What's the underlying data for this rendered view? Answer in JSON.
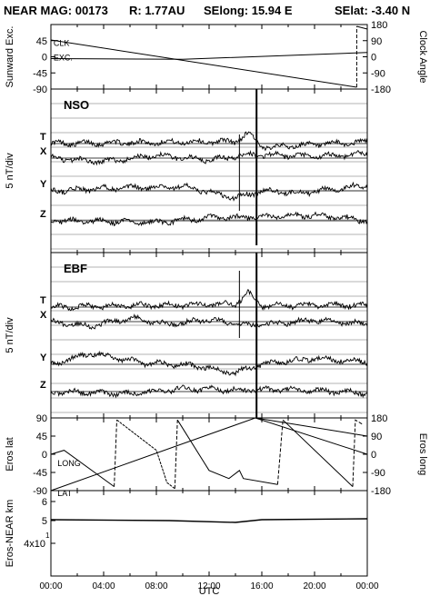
{
  "header": {
    "mission": "NEAR MAG: 00173",
    "range": "R: 1.77AU",
    "selong": "SElong:   15.94 E",
    "selat": "SElat:   -3.40 N"
  },
  "colors": {
    "trace": "#000000",
    "background": "#ffffff",
    "grid": "#000000"
  },
  "chart_data": [
    {
      "type": "line",
      "panel": "sunward-clock",
      "title": "",
      "ylabel": "Sunward Exc.",
      "y2label": "Clock Angle",
      "ylim": [
        -90,
        90
      ],
      "y2lim": [
        -180,
        180
      ],
      "yticks": [
        "45",
        "0",
        "-45",
        "-90"
      ],
      "y2ticks": [
        "180",
        "90",
        "0",
        "-90",
        "-180"
      ],
      "grid": false,
      "series": [
        {
          "name": "CLK",
          "values": [
            [
              0,
              47
            ],
            [
              23.2,
              -85
            ]
          ]
        },
        {
          "name": "EXC.",
          "values": [
            [
              0,
              -5
            ],
            [
              10,
              -7
            ],
            [
              24,
              12
            ]
          ]
        }
      ],
      "annotations": [
        {
          "text": "CLK",
          "at": [
            0.2,
            30
          ]
        },
        {
          "text": "EXC.",
          "at": [
            0.2,
            -10
          ]
        }
      ]
    },
    {
      "type": "line",
      "panel": "NSO",
      "title": "",
      "label": "NSO",
      "ylabel": "5 nT/div",
      "grid": true,
      "series": [
        {
          "name": "T",
          "values": [
            [
              0,
              0
            ],
            [
              14,
              0.3
            ],
            [
              15,
              1.5
            ],
            [
              16,
              -0.5
            ],
            [
              24,
              0.2
            ]
          ]
        },
        {
          "name": "X",
          "values": [
            [
              0,
              0
            ],
            [
              4,
              -0.5
            ],
            [
              8,
              0.4
            ],
            [
              12,
              -0.3
            ],
            [
              15,
              0.5
            ],
            [
              20,
              0.2
            ],
            [
              24,
              0.6
            ]
          ]
        },
        {
          "name": "Y",
          "values": [
            [
              0,
              0
            ],
            [
              4,
              0.3
            ],
            [
              10,
              0.6
            ],
            [
              14,
              -1
            ],
            [
              16,
              0
            ],
            [
              19,
              -0.3
            ],
            [
              24,
              0.8
            ]
          ]
        },
        {
          "name": "Z",
          "values": [
            [
              0,
              0
            ],
            [
              8,
              -0.2
            ],
            [
              12,
              0.4
            ],
            [
              16,
              0.5
            ],
            [
              20,
              0.8
            ],
            [
              24,
              0
            ]
          ]
        }
      ]
    },
    {
      "type": "line",
      "panel": "EBF",
      "title": "",
      "label": "EBF",
      "ylabel": "5 nT/div",
      "grid": true,
      "series": [
        {
          "name": "T",
          "values": [
            [
              0,
              0
            ],
            [
              14,
              0.4
            ],
            [
              15,
              2
            ],
            [
              16,
              0.2
            ],
            [
              24,
              0.3
            ]
          ]
        },
        {
          "name": "X",
          "values": [
            [
              0,
              0
            ],
            [
              3,
              -0.6
            ],
            [
              6,
              0.5
            ],
            [
              9,
              -0.4
            ],
            [
              12,
              0.3
            ],
            [
              15,
              -0.6
            ],
            [
              20,
              0.2
            ],
            [
              24,
              -0.3
            ]
          ]
        },
        {
          "name": "Y",
          "values": [
            [
              0,
              0
            ],
            [
              3,
              1.5
            ],
            [
              7,
              0.2
            ],
            [
              11,
              -0.2
            ],
            [
              14,
              -1.2
            ],
            [
              16,
              0
            ],
            [
              20,
              0.8
            ],
            [
              24,
              0.4
            ]
          ]
        },
        {
          "name": "Z",
          "values": [
            [
              0,
              0
            ],
            [
              6,
              -0.3
            ],
            [
              10,
              0.4
            ],
            [
              14,
              0.2
            ],
            [
              18,
              0.3
            ],
            [
              24,
              -0.2
            ]
          ]
        }
      ]
    },
    {
      "type": "line",
      "panel": "eros-lat-long",
      "title": "",
      "ylabel": "Eros lat",
      "y2label": "Eros long",
      "ylim": [
        -90,
        90
      ],
      "y2lim": [
        -180,
        180
      ],
      "yticks": [
        "90",
        "45",
        "0",
        "-45",
        "-90"
      ],
      "y2ticks": [
        "180",
        "90",
        "0",
        "-90",
        "-180"
      ],
      "grid": false,
      "series": [
        {
          "name": "LAT",
          "values": [
            [
              0,
              -90
            ],
            [
              15.5,
              90
            ],
            [
              24,
              0
            ]
          ]
        },
        {
          "name": "LONG",
          "values": [
            [
              0,
              0
            ],
            [
              1,
              10
            ],
            [
              5,
              -50
            ],
            [
              5.3,
              0
            ],
            [
              8,
              -40
            ],
            [
              10,
              -45
            ],
            [
              11,
              -30
            ],
            [
              13,
              -40
            ],
            [
              15,
              -40
            ],
            [
              16,
              -45
            ],
            [
              20,
              -60
            ],
            [
              23,
              -50
            ]
          ]
        }
      ],
      "annotations": [
        {
          "text": "LONG",
          "at": [
            0.5,
            -20
          ]
        },
        {
          "text": "LAT",
          "at": [
            0.5,
            -95
          ]
        }
      ]
    },
    {
      "type": "line",
      "panel": "eros-near-distance",
      "title": "",
      "ylabel": "Eros-NEAR km",
      "yticks": [
        "6",
        "5",
        "4x10",
        "1"
      ],
      "grid": false,
      "series": [
        {
          "name": "distance",
          "values": [
            [
              0,
              5.2
            ],
            [
              24,
              5.25
            ]
          ]
        }
      ]
    }
  ],
  "xaxis": {
    "label": "UTC",
    "ticks": [
      "00:00",
      "04:00",
      "08:00",
      "12:00",
      "16:00",
      "20:00",
      "00:00"
    ]
  }
}
